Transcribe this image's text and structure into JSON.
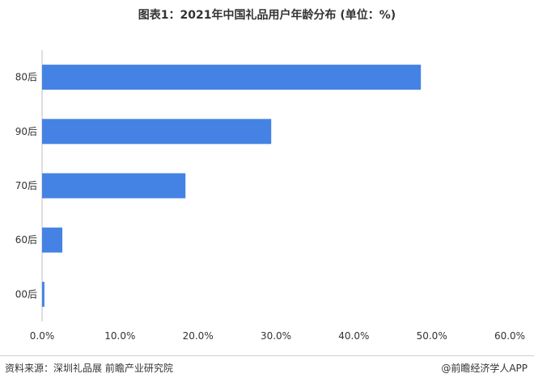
{
  "chart_data": {
    "type": "bar",
    "orientation": "horizontal",
    "title": "图表1：2021年中国礼品用户年龄分布 (单位：%)",
    "categories": [
      "80后",
      "90后",
      "70后",
      "60后",
      "00后"
    ],
    "values": [
      48.6,
      29.4,
      18.4,
      2.6,
      0.3
    ],
    "xlim": [
      0,
      60
    ],
    "xticks": [
      "0.0%",
      "10.0%",
      "20.0%",
      "30.0%",
      "40.0%",
      "50.0%",
      "60.0%"
    ],
    "tick_values": [
      0,
      10,
      20,
      30,
      40,
      50,
      60
    ],
    "bar_color": "#4483e3",
    "grid": false,
    "legend": "none"
  },
  "footer": {
    "source": "资料来源：深圳礼品展 前瞻产业研究院",
    "credit": "@前瞻经济学人APP"
  }
}
